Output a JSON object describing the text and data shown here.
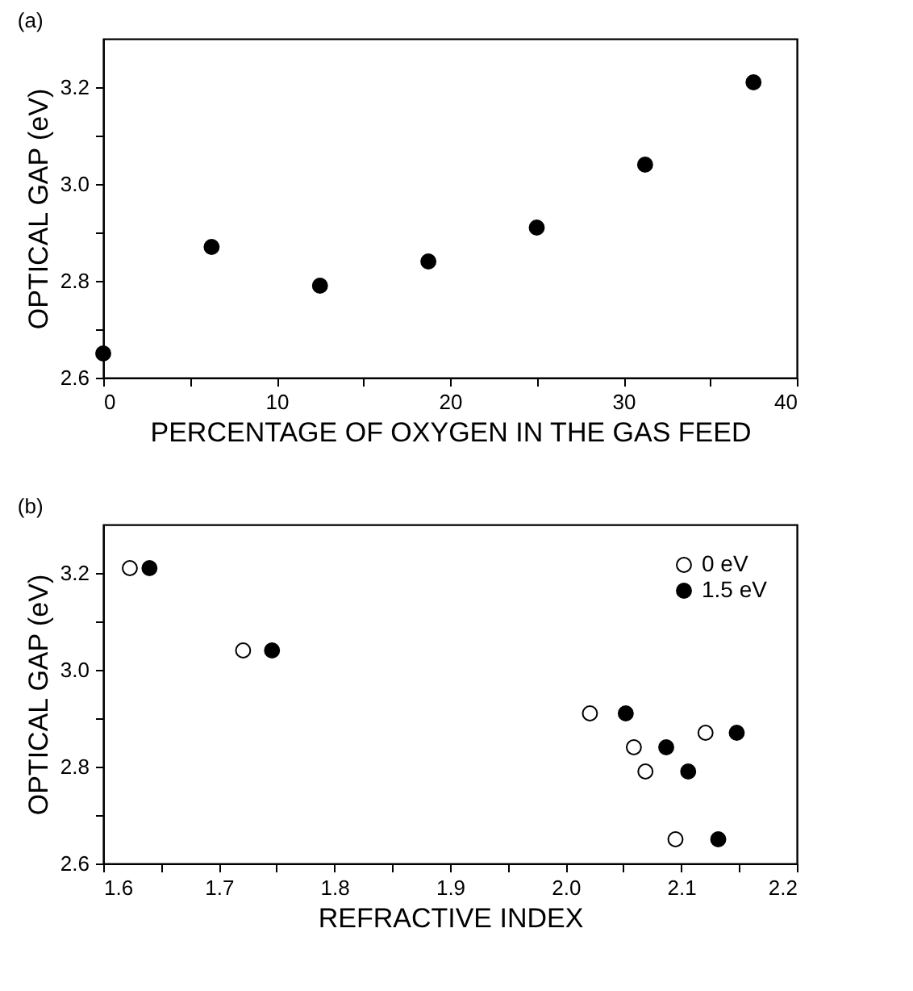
{
  "chart_data": [
    {
      "type": "scatter",
      "title": "(a)",
      "xlabel": "PERCENTAGE OF OXYGEN IN THE GAS FEED",
      "ylabel": "OPTICAL GAP (eV)",
      "marker": "circle",
      "grid": false,
      "xlim": [
        0,
        40
      ],
      "xticks": [
        0,
        {
          "value": 5,
          "label": null
        },
        10,
        {
          "value": 15,
          "label": null
        },
        20,
        {
          "value": 25,
          "label": null
        },
        30,
        {
          "value": 35,
          "label": null
        },
        40
      ],
      "ylim": [
        2.6,
        3.3
      ],
      "yticks": [
        2.6,
        {
          "value": 2.7,
          "label": null
        },
        2.8,
        {
          "value": 2.9,
          "label": null
        },
        {
          "value": 3,
          "label": "3.0"
        },
        {
          "value": 3.1,
          "label": null
        },
        3.2
      ],
      "x": [
        0,
        6.25,
        12.5,
        18.75,
        25,
        31.25,
        37.5
      ],
      "series": [
        {
          "color": "#000000",
          "values": [
            2.65,
            2.87,
            2.79,
            2.84,
            2.91,
            3.04,
            3.21
          ]
        }
      ]
    },
    {
      "type": "scatter",
      "title": "(b)",
      "xlabel": "REFRACTIVE INDEX",
      "ylabel": "OPTICAL GAP (eV)",
      "marker": "circle",
      "grid": false,
      "legend": "top right",
      "xlim": [
        1.6,
        2.2
      ],
      "xticks": [
        1.6,
        {
          "value": 1.65,
          "label": null
        },
        1.7,
        {
          "value": 1.75,
          "label": null
        },
        1.8,
        {
          "value": 1.85,
          "label": null
        },
        1.9,
        {
          "value": 1.95,
          "label": null
        },
        {
          "value": 2,
          "label": "2.0"
        },
        {
          "value": 2.05,
          "label": null
        },
        2.1,
        {
          "value": 2.15,
          "label": null
        },
        2.2
      ],
      "ylim": [
        2.6,
        3.3
      ],
      "yticks": [
        2.6,
        {
          "value": 2.7,
          "label": null
        },
        2.8,
        {
          "value": 2.9,
          "label": null
        },
        {
          "value": 3,
          "label": "3.0"
        },
        {
          "value": 3.1,
          "label": null
        },
        3.2
      ],
      "series": [
        {
          "name": "0 eV",
          "color": "#ffffff",
          "x": [
            1.623,
            1.721,
            2.021,
            2.059,
            2.069,
            2.095,
            2.121
          ],
          "values": [
            3.21,
            3.04,
            2.91,
            2.84,
            2.79,
            2.65,
            2.87
          ]
        },
        {
          "name": "1.5 eV",
          "color": "#000000",
          "x": [
            1.64,
            1.746,
            2.052,
            2.087,
            2.106,
            2.132,
            2.148
          ],
          "values": [
            3.21,
            3.04,
            2.91,
            2.84,
            2.79,
            2.65,
            2.87
          ]
        }
      ]
    }
  ]
}
